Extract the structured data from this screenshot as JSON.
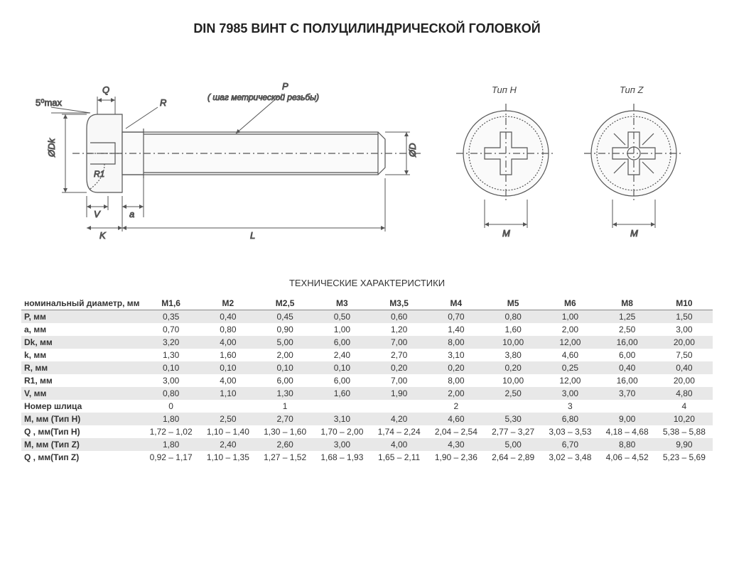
{
  "title": "DIN 7985 ВИНТ С ПОЛУЦИЛИНДРИЧЕСКОЙ ГОЛОВКОЙ",
  "specs_title": "ТЕХНИЧЕСКИЕ ХАРАКТЕРИСТИКИ",
  "diagram": {
    "labels": {
      "angle": "5⁰max",
      "Q": "Q",
      "R": "R",
      "P": "P",
      "P_note": "( шаг метрической резьбы)",
      "R1": "R1",
      "Dk": "ØDk",
      "D": "ØD",
      "V": "V",
      "a": "a",
      "K": "K",
      "L": "L",
      "M": "M",
      "typeH": "Тип H",
      "typeZ": "Тип Z"
    },
    "colors": {
      "stroke": "#555555",
      "fill_light": "#ffffff",
      "fill_head": "#f5f5f5",
      "text": "#444444"
    }
  },
  "table": {
    "header_label": "номинальный диаметр, мм",
    "columns": [
      "M1,6",
      "M2",
      "M2,5",
      "M3",
      "M3,5",
      "M4",
      "M5",
      "M6",
      "M8",
      "M10"
    ],
    "rows": [
      {
        "label": "P, мм",
        "values": [
          "0,35",
          "0,40",
          "0,45",
          "0,50",
          "0,60",
          "0,70",
          "0,80",
          "1,00",
          "1,25",
          "1,50"
        ],
        "striped": true
      },
      {
        "label": "a, мм",
        "values": [
          "0,70",
          "0,80",
          "0,90",
          "1,00",
          "1,20",
          "1,40",
          "1,60",
          "2,00",
          "2,50",
          "3,00"
        ],
        "striped": false
      },
      {
        "label": "Dk, мм",
        "values": [
          "3,20",
          "4,00",
          "5,00",
          "6,00",
          "7,00",
          "8,00",
          "10,00",
          "12,00",
          "16,00",
          "20,00"
        ],
        "striped": true
      },
      {
        "label": "k, мм",
        "values": [
          "1,30",
          "1,60",
          "2,00",
          "2,40",
          "2,70",
          "3,10",
          "3,80",
          "4,60",
          "6,00",
          "7,50"
        ],
        "striped": false
      },
      {
        "label": "R, мм",
        "values": [
          "0,10",
          "0,10",
          "0,10",
          "0,10",
          "0,20",
          "0,20",
          "0,20",
          "0,25",
          "0,40",
          "0,40"
        ],
        "striped": true
      },
      {
        "label": "R1, мм",
        "values": [
          "3,00",
          "4,00",
          "6,00",
          "6,00",
          "7,00",
          "8,00",
          "10,00",
          "12,00",
          "16,00",
          "20,00"
        ],
        "striped": false
      },
      {
        "label": "V, мм",
        "values": [
          "0,80",
          "1,10",
          "1,30",
          "1,60",
          "1,90",
          "2,00",
          "2,50",
          "3,00",
          "3,70",
          "4,80"
        ],
        "striped": true
      },
      {
        "label": "Номер шлица",
        "values": [
          "0",
          "",
          "1",
          "",
          "",
          "2",
          "",
          "3",
          "",
          "4"
        ],
        "striped": false,
        "span": true
      },
      {
        "label": "M, мм (Тип H)",
        "values": [
          "1,80",
          "2,50",
          "2,70",
          "3,10",
          "4,20",
          "4,60",
          "5,30",
          "6,80",
          "9,00",
          "10,20"
        ],
        "striped": true
      },
      {
        "label": "Q , мм(Тип H)",
        "values": [
          "1,72 – 1,02",
          "1,10 – 1,40",
          "1,30 – 1,60",
          "1,70 – 2,00",
          "1,74 – 2,24",
          "2,04 – 2,54",
          "2,77 – 3,27",
          "3,03 – 3,53",
          "4,18 – 4,68",
          "5,38 – 5,88"
        ],
        "striped": false
      },
      {
        "label": "M, мм (Тип Z)",
        "values": [
          "1,80",
          "2,40",
          "2,60",
          "3,00",
          "4,00",
          "4,30",
          "5,00",
          "6,70",
          "8,80",
          "9,90"
        ],
        "striped": true
      },
      {
        "label": "Q , мм(Тип Z)",
        "values": [
          "0,92 – 1,17",
          "1,10 – 1,35",
          "1,27 – 1,52",
          "1,68 – 1,93",
          "1,65 – 2,11",
          "1,90 – 2,36",
          "2,64 – 2,89",
          "3,02 – 3,48",
          "4,06 – 4,52",
          "5,23 – 5,69"
        ],
        "striped": false
      }
    ],
    "colors": {
      "stripe": "#e8e8e8",
      "text": "#333333",
      "header_border": "#888888"
    }
  }
}
